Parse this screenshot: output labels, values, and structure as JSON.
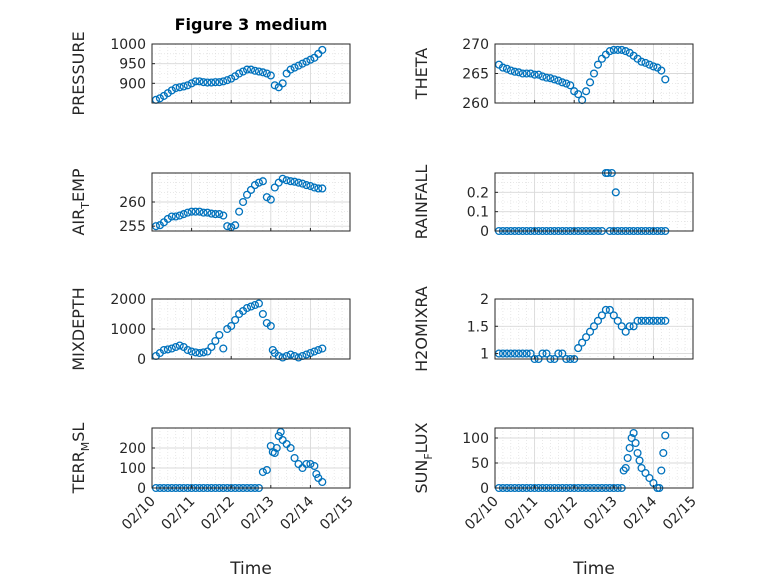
{
  "figure": {
    "title": "Figure 3 medium",
    "xlabel": "Time",
    "colors": {
      "marker": "#0072BD",
      "grid": "#d9d9d9",
      "axis": "#262626"
    }
  },
  "chart_data": [
    {
      "type": "scatter",
      "ylabel": "PRESSURE",
      "xlim": [
        "02/10",
        "02/15"
      ],
      "ylim": [
        850,
        1000
      ],
      "yticks": [
        900,
        950,
        1000
      ],
      "xticks": [
        "02/10",
        "02/11",
        "02/12",
        "02/13",
        "02/14",
        "02/15"
      ],
      "x": [
        0.1,
        0.2,
        0.3,
        0.4,
        0.5,
        0.6,
        0.7,
        0.8,
        0.9,
        1.0,
        1.1,
        1.2,
        1.3,
        1.4,
        1.5,
        1.6,
        1.7,
        1.8,
        1.9,
        2.0,
        2.1,
        2.2,
        2.3,
        2.4,
        2.5,
        2.6,
        2.7,
        2.8,
        2.9,
        3.0,
        3.1,
        3.2,
        3.3,
        3.4,
        3.5,
        3.6,
        3.7,
        3.8,
        3.9,
        4.0,
        4.1,
        4.2,
        4.3
      ],
      "y": [
        858,
        862,
        868,
        875,
        882,
        888,
        890,
        892,
        895,
        900,
        905,
        905,
        903,
        902,
        902,
        903,
        903,
        905,
        908,
        912,
        918,
        925,
        930,
        935,
        935,
        932,
        930,
        928,
        925,
        920,
        895,
        890,
        900,
        925,
        935,
        940,
        945,
        950,
        955,
        960,
        965,
        975,
        985
      ]
    },
    {
      "type": "scatter",
      "ylabel": "THETA",
      "xlim": [
        "02/10",
        "02/15"
      ],
      "ylim": [
        260,
        270
      ],
      "yticks": [
        260,
        265,
        270
      ],
      "xticks": [
        "02/10",
        "02/11",
        "02/12",
        "02/13",
        "02/14",
        "02/15"
      ],
      "x": [
        0.1,
        0.2,
        0.3,
        0.4,
        0.5,
        0.6,
        0.7,
        0.8,
        0.9,
        1.0,
        1.1,
        1.2,
        1.3,
        1.4,
        1.5,
        1.6,
        1.7,
        1.8,
        1.9,
        2.0,
        2.1,
        2.2,
        2.3,
        2.4,
        2.5,
        2.6,
        2.7,
        2.8,
        2.9,
        3.0,
        3.1,
        3.2,
        3.3,
        3.4,
        3.5,
        3.6,
        3.7,
        3.8,
        3.9,
        4.0,
        4.1,
        4.2,
        4.3
      ],
      "y": [
        266.5,
        266,
        265.8,
        265.5,
        265.3,
        265.2,
        265,
        265,
        265,
        264.8,
        264.8,
        264.5,
        264.3,
        264.2,
        264,
        263.8,
        263.5,
        263.3,
        263,
        262,
        261.5,
        260.5,
        262,
        263.5,
        265,
        266.5,
        267.5,
        268.2,
        268.8,
        269,
        269,
        269,
        268.8,
        268.5,
        268,
        267.5,
        267,
        266.8,
        266.5,
        266.2,
        266,
        265.5,
        264
      ]
    },
    {
      "type": "scatter",
      "ylabel": "AIR",
      "ylabel_sub": "T",
      "ylabel_rest": "EMP",
      "xlim": [
        "02/10",
        "02/15"
      ],
      "ylim": [
        254,
        266
      ],
      "yticks": [
        255,
        260
      ],
      "xticks": [
        "02/10",
        "02/11",
        "02/12",
        "02/13",
        "02/14",
        "02/15"
      ],
      "x": [
        0.1,
        0.2,
        0.3,
        0.4,
        0.5,
        0.6,
        0.7,
        0.8,
        0.9,
        1.0,
        1.1,
        1.2,
        1.3,
        1.4,
        1.5,
        1.6,
        1.7,
        1.8,
        1.9,
        2.0,
        2.1,
        2.2,
        2.3,
        2.4,
        2.5,
        2.6,
        2.7,
        2.8,
        2.9,
        3.0,
        3.1,
        3.2,
        3.3,
        3.4,
        3.5,
        3.6,
        3.7,
        3.8,
        3.9,
        4.0,
        4.1,
        4.2,
        4.3
      ],
      "y": [
        255,
        255.2,
        255.8,
        256.5,
        257,
        257,
        257.2,
        257.5,
        257.8,
        258,
        258,
        258,
        257.8,
        257.8,
        257.6,
        257.5,
        257.5,
        257.2,
        255,
        254.8,
        255.2,
        258,
        260,
        261.5,
        262.5,
        263.5,
        264,
        264.3,
        261,
        260.5,
        263,
        264,
        264.8,
        264.5,
        264.3,
        264.2,
        264,
        263.8,
        263.5,
        263.3,
        263,
        262.8,
        262.8
      ]
    },
    {
      "type": "scatter",
      "ylabel": "RAINFALL",
      "xlim": [
        "02/10",
        "02/15"
      ],
      "ylim": [
        0,
        0.3
      ],
      "yticks": [
        0,
        0.1,
        0.2
      ],
      "xticks": [
        "02/10",
        "02/11",
        "02/12",
        "02/13",
        "02/14",
        "02/15"
      ],
      "x": [
        0.1,
        0.2,
        0.3,
        0.4,
        0.5,
        0.6,
        0.7,
        0.8,
        0.9,
        1.0,
        1.1,
        1.2,
        1.3,
        1.4,
        1.5,
        1.6,
        1.7,
        1.8,
        1.9,
        2.0,
        2.1,
        2.2,
        2.3,
        2.4,
        2.5,
        2.6,
        2.7,
        2.8,
        2.85,
        2.9,
        2.95,
        3.0,
        3.05,
        3.1,
        3.2,
        3.3,
        3.4,
        3.5,
        3.6,
        3.7,
        3.8,
        3.9,
        4.0,
        4.1,
        4.2,
        4.3
      ],
      "y": [
        0,
        0,
        0,
        0,
        0,
        0,
        0,
        0,
        0,
        0,
        0,
        0,
        0,
        0,
        0,
        0,
        0,
        0,
        0,
        0,
        0,
        0,
        0,
        0,
        0,
        0,
        0,
        0.3,
        0.3,
        0,
        0.3,
        0,
        0.2,
        0,
        0,
        0,
        0,
        0,
        0,
        0,
        0,
        0,
        0,
        0,
        0,
        0
      ]
    },
    {
      "type": "scatter",
      "ylabel": "MIXDEPTH",
      "xlim": [
        "02/10",
        "02/15"
      ],
      "ylim": [
        0,
        2000
      ],
      "yticks": [
        0,
        1000,
        2000
      ],
      "xticks": [
        "02/10",
        "02/11",
        "02/12",
        "02/13",
        "02/14",
        "02/15"
      ],
      "x": [
        0.1,
        0.2,
        0.3,
        0.4,
        0.5,
        0.6,
        0.7,
        0.8,
        0.9,
        1.0,
        1.1,
        1.2,
        1.3,
        1.4,
        1.5,
        1.6,
        1.7,
        1.8,
        1.9,
        2.0,
        2.1,
        2.2,
        2.3,
        2.4,
        2.5,
        2.6,
        2.7,
        2.8,
        2.9,
        3.0,
        3.05,
        3.1,
        3.2,
        3.3,
        3.4,
        3.5,
        3.6,
        3.7,
        3.8,
        3.9,
        4.0,
        4.1,
        4.2,
        4.3
      ],
      "y": [
        100,
        200,
        300,
        320,
        350,
        400,
        450,
        400,
        300,
        250,
        220,
        200,
        220,
        250,
        400,
        600,
        800,
        350,
        1000,
        1100,
        1300,
        1500,
        1600,
        1700,
        1750,
        1800,
        1850,
        1500,
        1200,
        1100,
        300,
        200,
        100,
        50,
        100,
        150,
        100,
        50,
        100,
        150,
        200,
        250,
        300,
        350
      ]
    },
    {
      "type": "scatter",
      "ylabel": "H2OMIXRA",
      "xlim": [
        "02/10",
        "02/15"
      ],
      "ylim": [
        0.9,
        2
      ],
      "yticks": [
        1,
        1.5,
        2
      ],
      "xticks": [
        "02/10",
        "02/11",
        "02/12",
        "02/13",
        "02/14",
        "02/15"
      ],
      "x": [
        0.1,
        0.2,
        0.3,
        0.4,
        0.5,
        0.6,
        0.7,
        0.8,
        0.9,
        1.0,
        1.1,
        1.2,
        1.3,
        1.4,
        1.5,
        1.6,
        1.7,
        1.8,
        1.9,
        2.0,
        2.1,
        2.2,
        2.3,
        2.4,
        2.5,
        2.6,
        2.7,
        2.8,
        2.9,
        3.0,
        3.1,
        3.2,
        3.3,
        3.4,
        3.5,
        3.6,
        3.7,
        3.8,
        3.9,
        4.0,
        4.1,
        4.2,
        4.3
      ],
      "y": [
        1,
        1,
        1,
        1,
        1,
        1,
        1,
        1,
        1,
        0.9,
        0.9,
        1,
        1,
        0.9,
        0.9,
        1,
        1,
        0.9,
        0.9,
        0.9,
        1.1,
        1.2,
        1.3,
        1.4,
        1.5,
        1.6,
        1.7,
        1.8,
        1.8,
        1.7,
        1.6,
        1.5,
        1.4,
        1.5,
        1.5,
        1.6,
        1.6,
        1.6,
        1.6,
        1.6,
        1.6,
        1.6,
        1.6
      ]
    },
    {
      "type": "scatter",
      "ylabel": "TERR",
      "ylabel_sub": "M",
      "ylabel_rest": "SL",
      "xlim": [
        "02/10",
        "02/15"
      ],
      "ylim": [
        0,
        300
      ],
      "yticks": [
        0,
        100,
        200
      ],
      "xticks": [
        "02/10",
        "02/11",
        "02/12",
        "02/13",
        "02/14",
        "02/15"
      ],
      "x": [
        0.1,
        0.2,
        0.3,
        0.4,
        0.5,
        0.6,
        0.7,
        0.8,
        0.9,
        1.0,
        1.1,
        1.2,
        1.3,
        1.4,
        1.5,
        1.6,
        1.7,
        1.8,
        1.9,
        2.0,
        2.1,
        2.2,
        2.3,
        2.4,
        2.5,
        2.6,
        2.7,
        2.8,
        2.9,
        3.0,
        3.05,
        3.1,
        3.15,
        3.2,
        3.25,
        3.3,
        3.4,
        3.5,
        3.6,
        3.7,
        3.8,
        3.9,
        4.0,
        4.1,
        4.15,
        4.2,
        4.3
      ],
      "y": [
        0,
        0,
        0,
        0,
        0,
        0,
        0,
        0,
        0,
        0,
        0,
        0,
        0,
        0,
        0,
        0,
        0,
        0,
        0,
        0,
        0,
        0,
        0,
        0,
        0,
        0,
        0,
        80,
        90,
        210,
        180,
        175,
        200,
        260,
        280,
        240,
        220,
        200,
        150,
        120,
        100,
        120,
        120,
        110,
        70,
        50,
        30
      ]
    },
    {
      "type": "scatter",
      "ylabel": "SUN",
      "ylabel_sub": "F",
      "ylabel_rest": "LUX",
      "xlim": [
        "02/10",
        "02/15"
      ],
      "ylim": [
        0,
        120
      ],
      "yticks": [
        0,
        50,
        100
      ],
      "xticks": [
        "02/10",
        "02/11",
        "02/12",
        "02/13",
        "02/14",
        "02/15"
      ],
      "x": [
        0.1,
        0.2,
        0.3,
        0.4,
        0.5,
        0.6,
        0.7,
        0.8,
        0.9,
        1.0,
        1.1,
        1.2,
        1.3,
        1.4,
        1.5,
        1.6,
        1.7,
        1.8,
        1.9,
        2.0,
        2.1,
        2.2,
        2.3,
        2.4,
        2.5,
        2.6,
        2.7,
        2.8,
        2.9,
        3.0,
        3.1,
        3.2,
        3.25,
        3.3,
        3.35,
        3.4,
        3.45,
        3.5,
        3.55,
        3.6,
        3.65,
        3.7,
        3.8,
        3.9,
        4.0,
        4.1,
        4.15,
        4.2,
        4.25,
        4.3
      ],
      "y": [
        0,
        0,
        0,
        0,
        0,
        0,
        0,
        0,
        0,
        0,
        0,
        0,
        0,
        0,
        0,
        0,
        0,
        0,
        0,
        0,
        0,
        0,
        0,
        0,
        0,
        0,
        0,
        0,
        0,
        0,
        0,
        0,
        35,
        40,
        60,
        80,
        100,
        110,
        90,
        70,
        55,
        40,
        30,
        20,
        10,
        0,
        0,
        35,
        70,
        105
      ]
    }
  ]
}
